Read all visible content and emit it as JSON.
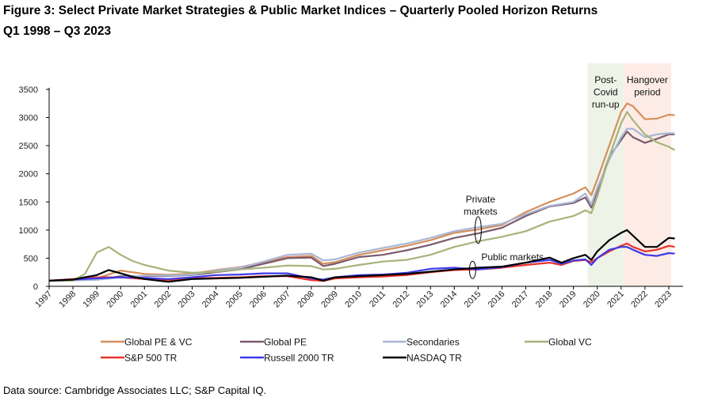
{
  "figure": {
    "title": "Figure 3: Select Private Market Strategies & Public Market Indices – Quarterly Pooled Horizon Returns",
    "subtitle": "Q1 1998 – Q3 2023",
    "source": "Data source: Cambridge Associates LLC; S&P Capital IQ."
  },
  "chart_data": {
    "type": "line",
    "xlabel": "",
    "ylabel": "",
    "xlim": [
      1997,
      2023.6
    ],
    "ylim": [
      0,
      3500
    ],
    "y_ticks": [
      0,
      500,
      1000,
      1500,
      2000,
      2500,
      3000,
      3500
    ],
    "x_tick_labels": [
      "1997",
      "1998",
      "1999",
      "2000",
      "2001",
      "2002",
      "2003",
      "2004",
      "2005",
      "2006",
      "2007",
      "2008",
      "2009",
      "2010",
      "2011",
      "2012",
      "2013",
      "2014",
      "2015",
      "2016",
      "2017",
      "2018",
      "2019",
      "2020",
      "2021",
      "2022",
      "2023"
    ],
    "grid": false,
    "legend_position": "bottom",
    "shaded_regions": [
      {
        "label": "Post-Covid run-up",
        "lines": [
          "Post-",
          "Covid",
          "run-up"
        ],
        "x_start": 2019.6,
        "x_end": 2021.1,
        "color": "#eef3e8"
      },
      {
        "label": "Hangover period",
        "lines": [
          "Hangover",
          "period"
        ],
        "x_start": 2021.1,
        "x_end": 2023.1,
        "color": "#fdece6"
      }
    ],
    "annotations": [
      {
        "id": "private",
        "lines": [
          "Private",
          "markets"
        ],
        "x": 2015.0,
        "y": 1000
      },
      {
        "id": "public",
        "lines": [
          "Public markets"
        ],
        "x": 2015.0,
        "y": 320
      }
    ],
    "series": [
      {
        "name": "Global PE & VC",
        "color": "#d58f5c",
        "x": [
          1997,
          1998,
          1999,
          2000,
          2001,
          2002,
          2003,
          2004,
          2005,
          2006,
          2007,
          2008,
          2008.5,
          2009,
          2010,
          2011,
          2012,
          2013,
          2014,
          2015,
          2016,
          2017,
          2018,
          2019,
          2019.5,
          2019.75,
          2020,
          2020.5,
          2021,
          2021.25,
          2021.5,
          2022,
          2022.5,
          2023,
          2023.25
        ],
        "y": [
          100,
          110,
          140,
          280,
          220,
          205,
          225,
          290,
          340,
          430,
          520,
          540,
          400,
          430,
          560,
          640,
          720,
          820,
          950,
          1010,
          1090,
          1320,
          1500,
          1650,
          1760,
          1620,
          1900,
          2500,
          3100,
          3250,
          3200,
          2970,
          2980,
          3050,
          3040
        ]
      },
      {
        "name": "Global PE",
        "color": "#7b5a6e",
        "x": [
          1997,
          1998,
          1999,
          2000,
          2001,
          2002,
          2003,
          2004,
          2005,
          2006,
          2007,
          2008,
          2008.5,
          2009,
          2010,
          2011,
          2012,
          2013,
          2014,
          2015,
          2016,
          2017,
          2018,
          2019,
          2019.5,
          2019.75,
          2020,
          2020.5,
          2021,
          2021.25,
          2021.5,
          2022,
          2022.5,
          2023,
          2023.25
        ],
        "y": [
          100,
          110,
          120,
          180,
          180,
          185,
          200,
          250,
          300,
          400,
          500,
          510,
          360,
          400,
          520,
          560,
          640,
          740,
          860,
          940,
          1040,
          1250,
          1420,
          1480,
          1580,
          1400,
          1700,
          2300,
          2600,
          2750,
          2650,
          2550,
          2620,
          2700,
          2700
        ]
      },
      {
        "name": "Secondaries",
        "color": "#a9b6d6",
        "x": [
          1997,
          1998,
          1999,
          2000,
          2001,
          2002,
          2003,
          2004,
          2005,
          2006,
          2007,
          2008,
          2008.5,
          2009,
          2010,
          2011,
          2012,
          2013,
          2014,
          2015,
          2016,
          2017,
          2018,
          2019,
          2019.5,
          2019.75,
          2020,
          2020.5,
          2021,
          2021.25,
          2021.5,
          2022,
          2022.5,
          2023,
          2023.25
        ],
        "y": [
          100,
          105,
          115,
          160,
          190,
          195,
          205,
          280,
          330,
          440,
          560,
          580,
          460,
          480,
          600,
          680,
          760,
          860,
          980,
          1050,
          1110,
          1280,
          1430,
          1500,
          1650,
          1450,
          1750,
          2250,
          2650,
          2800,
          2800,
          2650,
          2700,
          2720,
          2720
        ]
      },
      {
        "name": "Global VC",
        "color": "#a8b37a",
        "x": [
          1997,
          1998,
          1998.5,
          1999,
          1999.5,
          2000,
          2000.5,
          2001,
          2002,
          2003,
          2004,
          2005,
          2006,
          2007,
          2008,
          2008.5,
          2009,
          2010,
          2011,
          2012,
          2013,
          2014,
          2015,
          2016,
          2017,
          2018,
          2019,
          2019.5,
          2019.75,
          2020,
          2020.5,
          2021,
          2021.25,
          2021.5,
          2022,
          2022.5,
          2023,
          2023.25
        ],
        "y": [
          100,
          100,
          220,
          600,
          700,
          560,
          450,
          380,
          280,
          240,
          260,
          300,
          330,
          370,
          360,
          300,
          310,
          380,
          440,
          470,
          560,
          700,
          800,
          880,
          980,
          1150,
          1250,
          1350,
          1300,
          1600,
          2300,
          2900,
          3100,
          2950,
          2700,
          2560,
          2480,
          2420
        ]
      },
      {
        "name": "S&P 500 TR",
        "color": "#e8332b",
        "x": [
          1997,
          1998,
          1999,
          2000,
          2001,
          2002,
          2003,
          2004,
          2005,
          2006,
          2007,
          2008,
          2008.5,
          2009,
          2010,
          2011,
          2012,
          2013,
          2014,
          2015,
          2016,
          2017,
          2018,
          2018.5,
          2019,
          2019.5,
          2019.75,
          2020,
          2020.5,
          2021,
          2021.25,
          2021.5,
          2022,
          2022.5,
          2023,
          2023.25
        ],
        "y": [
          100,
          130,
          160,
          160,
          130,
          110,
          140,
          150,
          160,
          180,
          180,
          110,
          95,
          140,
          160,
          175,
          200,
          250,
          290,
          300,
          330,
          380,
          420,
          380,
          450,
          470,
          430,
          500,
          620,
          720,
          760,
          700,
          620,
          650,
          720,
          700
        ]
      },
      {
        "name": "Russell 2000 TR",
        "color": "#3d3bea",
        "x": [
          1997,
          1998,
          1999,
          2000,
          2001,
          2002,
          2003,
          2004,
          2005,
          2006,
          2007,
          2008,
          2008.5,
          2009,
          2010,
          2011,
          2012,
          2013,
          2014,
          2015,
          2016,
          2017,
          2018,
          2018.5,
          2019,
          2019.5,
          2019.75,
          2020,
          2020.5,
          2021,
          2021.25,
          2021.5,
          2022,
          2022.5,
          2023,
          2023.25
        ],
        "y": [
          100,
          120,
          140,
          160,
          150,
          130,
          160,
          200,
          210,
          230,
          230,
          140,
          120,
          160,
          200,
          210,
          240,
          310,
          330,
          300,
          340,
          420,
          470,
          400,
          460,
          480,
          380,
          500,
          650,
          700,
          700,
          650,
          560,
          540,
          590,
          580
        ]
      },
      {
        "name": "NASDAQ TR",
        "color": "#000000",
        "x": [
          1997,
          1998,
          1998.5,
          1999,
          1999.5,
          2000,
          2000.5,
          2001,
          2002,
          2003,
          2004,
          2005,
          2006,
          2007,
          2008,
          2008.5,
          2009,
          2010,
          2011,
          2012,
          2013,
          2014,
          2015,
          2016,
          2017,
          2018,
          2018.5,
          2019,
          2019.5,
          2019.75,
          2020,
          2020.5,
          2021,
          2021.25,
          2021.5,
          2022,
          2022.5,
          2023,
          2023.25
        ],
        "y": [
          100,
          120,
          160,
          200,
          290,
          230,
          170,
          130,
          80,
          130,
          140,
          150,
          170,
          190,
          160,
          100,
          160,
          180,
          200,
          220,
          260,
          300,
          330,
          350,
          420,
          510,
          420,
          500,
          560,
          470,
          620,
          820,
          950,
          1000,
          900,
          700,
          700,
          860,
          850
        ]
      }
    ]
  }
}
